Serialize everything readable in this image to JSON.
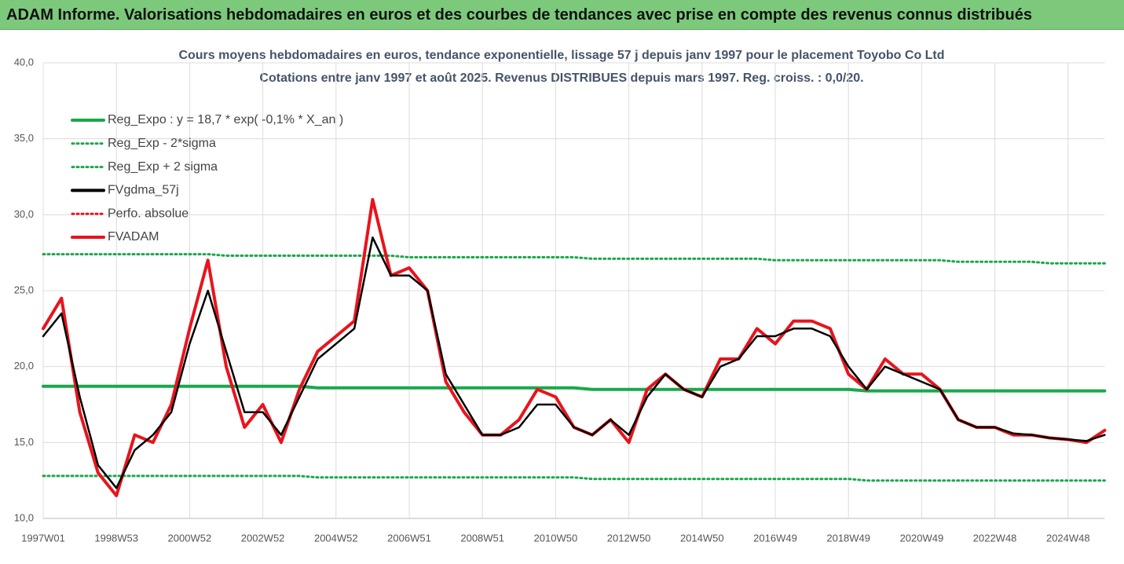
{
  "banner": "ADAM Informe. Valorisations hebdomadaires en euros et des courbes de tendances avec prise en compte des revenus connus distribués",
  "chart_data": {
    "type": "line",
    "title": "Cours moyens hebdomadaires en euros, tendance exponentielle, lissage 57 j depuis janv 1997  pour le placement Toyobo Co Ltd",
    "subtitle": "Cotations entre janv 1997 et août 2025.  Revenus DISTRIBUES depuis mars 1997. Reg. croiss. : 0,0/20.",
    "categories": [
      "1997W01",
      null,
      null,
      null,
      "1998W53",
      null,
      null,
      null,
      "2000W52",
      null,
      null,
      null,
      "2002W52",
      null,
      null,
      null,
      "2004W52",
      null,
      null,
      null,
      "2006W51",
      null,
      null,
      null,
      "2008W51",
      null,
      null,
      null,
      "2010W50",
      null,
      null,
      null,
      "2012W50",
      null,
      null,
      null,
      "2014W50",
      null,
      null,
      null,
      "2016W49",
      null,
      null,
      null,
      "2018W49",
      null,
      null,
      null,
      "2020W49",
      null,
      null,
      null,
      "2022W48",
      null,
      null,
      null,
      "2024W48",
      null,
      null
    ],
    "ylim": [
      10,
      40
    ],
    "yticks": [
      {
        "value": 10,
        "label": "10,0"
      },
      {
        "value": 15,
        "label": "15,0"
      },
      {
        "value": 20,
        "label": "20,0"
      },
      {
        "value": 25,
        "label": "25,0"
      },
      {
        "value": 30,
        "label": "30,0"
      },
      {
        "value": 35,
        "label": "35,0"
      },
      {
        "value": 40,
        "label": "40,0"
      }
    ],
    "grid": true,
    "legend": "upper-left",
    "series": [
      {
        "name": "Reg_Expo : y = 18,7 * exp( -0,1% *  X_an )",
        "color": "#1aa84a",
        "style": "solid",
        "values": [
          18.7,
          18.7,
          18.7,
          18.7,
          18.7,
          18.7,
          18.7,
          18.7,
          18.7,
          18.7,
          18.7,
          18.7,
          18.7,
          18.7,
          18.7,
          18.6,
          18.6,
          18.6,
          18.6,
          18.6,
          18.6,
          18.6,
          18.6,
          18.6,
          18.6,
          18.6,
          18.6,
          18.6,
          18.6,
          18.6,
          18.5,
          18.5,
          18.5,
          18.5,
          18.5,
          18.5,
          18.5,
          18.5,
          18.5,
          18.5,
          18.5,
          18.5,
          18.5,
          18.5,
          18.5,
          18.4,
          18.4,
          18.4,
          18.4,
          18.4,
          18.4,
          18.4,
          18.4,
          18.4,
          18.4,
          18.4,
          18.4,
          18.4,
          18.4
        ]
      },
      {
        "name": "Reg_Exp - 2*sigma",
        "color": "#1aa84a",
        "style": "dotted",
        "values": [
          12.8,
          12.8,
          12.8,
          12.8,
          12.8,
          12.8,
          12.8,
          12.8,
          12.8,
          12.8,
          12.8,
          12.8,
          12.8,
          12.8,
          12.8,
          12.7,
          12.7,
          12.7,
          12.7,
          12.7,
          12.7,
          12.7,
          12.7,
          12.7,
          12.7,
          12.7,
          12.7,
          12.7,
          12.7,
          12.7,
          12.6,
          12.6,
          12.6,
          12.6,
          12.6,
          12.6,
          12.6,
          12.6,
          12.6,
          12.6,
          12.6,
          12.6,
          12.6,
          12.6,
          12.6,
          12.5,
          12.5,
          12.5,
          12.5,
          12.5,
          12.5,
          12.5,
          12.5,
          12.5,
          12.5,
          12.5,
          12.5,
          12.5,
          12.5
        ]
      },
      {
        "name": "Reg_Exp + 2 sigma",
        "color": "#1aa84a",
        "style": "dotted",
        "values": [
          27.4,
          27.4,
          27.4,
          27.4,
          27.4,
          27.4,
          27.4,
          27.4,
          27.4,
          27.4,
          27.3,
          27.3,
          27.3,
          27.3,
          27.3,
          27.3,
          27.3,
          27.3,
          27.3,
          27.3,
          27.2,
          27.2,
          27.2,
          27.2,
          27.2,
          27.2,
          27.2,
          27.2,
          27.2,
          27.2,
          27.1,
          27.1,
          27.1,
          27.1,
          27.1,
          27.1,
          27.1,
          27.1,
          27.1,
          27.1,
          27.0,
          27.0,
          27.0,
          27.0,
          27.0,
          27.0,
          27.0,
          27.0,
          27.0,
          27.0,
          26.9,
          26.9,
          26.9,
          26.9,
          26.9,
          26.8,
          26.8,
          26.8,
          26.8
        ]
      },
      {
        "name": "FVgdma_57j",
        "color": "#000000",
        "style": "solid",
        "values": [
          22,
          23.5,
          18,
          13.5,
          12,
          14.5,
          15.5,
          17,
          21.5,
          25,
          21,
          17,
          17,
          15.5,
          18,
          20.5,
          21.5,
          22.5,
          28.5,
          26,
          26,
          25,
          19.5,
          17.5,
          15.5,
          15.5,
          16,
          17.5,
          17.5,
          16,
          15.5,
          16.5,
          15.5,
          18,
          19.5,
          18.5,
          18,
          20,
          20.5,
          22,
          22,
          22.5,
          22.5,
          22,
          20,
          18.5,
          20,
          19.5,
          19,
          18.5,
          16.5,
          16,
          16,
          15.6,
          15.5,
          15.3,
          15.2,
          15.1,
          15.5
        ]
      },
      {
        "name": "Perfo. absolue",
        "color": "#e8141c",
        "style": "dotted",
        "values": [
          22.5,
          24.5,
          17,
          13,
          11.5,
          15.5,
          15,
          17.5,
          22.5,
          27,
          20,
          16,
          17.5,
          15,
          18.5,
          21,
          22,
          23,
          31,
          26,
          26.5,
          25,
          19,
          17,
          15.5,
          15.5,
          16.5,
          18.5,
          18,
          16,
          15.5,
          16.5,
          15,
          18.5,
          19.5,
          18.5,
          18,
          20.5,
          20.5,
          22.5,
          21.5,
          23,
          23,
          22.5,
          19.5,
          18.5,
          20.5,
          19.5,
          19.5,
          18.5,
          16.5,
          16,
          16,
          15.5,
          15.5,
          15.3,
          15.2,
          15,
          15.8
        ]
      },
      {
        "name": "FVADAM",
        "color": "#e8141c",
        "style": "solid",
        "values": [
          22.5,
          24.5,
          17,
          13,
          11.5,
          15.5,
          15,
          17.5,
          22.5,
          27,
          20,
          16,
          17.5,
          15,
          18.5,
          21,
          22,
          23,
          31,
          26,
          26.5,
          25,
          19,
          17,
          15.5,
          15.5,
          16.5,
          18.5,
          18,
          16,
          15.5,
          16.5,
          15,
          18.5,
          19.5,
          18.5,
          18,
          20.5,
          20.5,
          22.5,
          21.5,
          23,
          23,
          22.5,
          19.5,
          18.5,
          20.5,
          19.5,
          19.5,
          18.5,
          16.5,
          16,
          16,
          15.5,
          15.5,
          15.3,
          15.2,
          15,
          15.8
        ]
      }
    ]
  }
}
